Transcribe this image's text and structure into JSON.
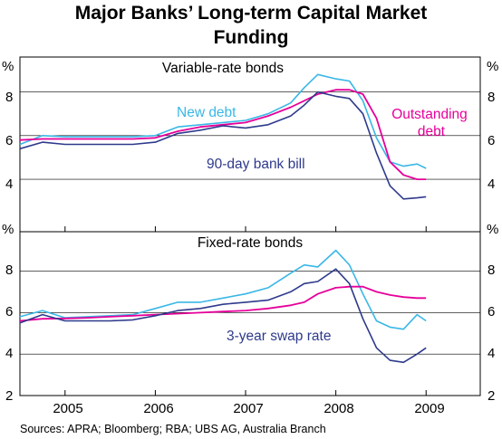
{
  "chart_title": [
    "Major Banks’ Long-term Capital Market",
    "Funding"
  ],
  "source": "Sources: APRA; Bloomberg; RBA; UBS AG, Australia Branch",
  "colors": {
    "new_debt": "#3ab7e6",
    "outstanding_debt": "#e6009a",
    "bank_bill": "#2e3a8c",
    "axes": "#000000",
    "grid": "#000000"
  },
  "chart_data": [
    {
      "type": "line",
      "title": "Variable-rate bonds",
      "ylabel": "%",
      "ylim": [
        2,
        10
      ],
      "yticks": [
        "4",
        "6",
        "8"
      ],
      "x_labels": [
        "2005",
        "2006",
        "2007",
        "2008",
        "2009"
      ],
      "x": [
        2004.5,
        2004.75,
        2005.0,
        2005.25,
        2005.5,
        2005.75,
        2006.0,
        2006.25,
        2006.5,
        2006.75,
        2007.0,
        2007.25,
        2007.5,
        2007.65,
        2007.8,
        2008.0,
        2008.15,
        2008.3,
        2008.45,
        2008.6,
        2008.75,
        2008.9,
        2009.0
      ],
      "series": [
        {
          "name": "New debt",
          "values": [
            5.6,
            6.0,
            5.95,
            5.95,
            5.95,
            5.95,
            6.0,
            6.4,
            6.5,
            6.6,
            6.7,
            7.0,
            7.5,
            8.2,
            8.8,
            8.6,
            8.5,
            7.6,
            5.9,
            4.8,
            4.6,
            4.7,
            4.5
          ]
        },
        {
          "name": "Outstanding debt",
          "values": [
            5.8,
            5.85,
            5.85,
            5.85,
            5.85,
            5.85,
            5.9,
            6.2,
            6.4,
            6.5,
            6.6,
            6.9,
            7.3,
            7.6,
            7.9,
            8.1,
            8.1,
            7.9,
            6.8,
            4.8,
            4.2,
            4.0,
            4.0
          ]
        },
        {
          "name": "90-day bank bill",
          "values": [
            5.4,
            5.7,
            5.6,
            5.6,
            5.6,
            5.6,
            5.7,
            6.1,
            6.25,
            6.45,
            6.35,
            6.5,
            6.9,
            7.4,
            8.0,
            7.8,
            7.7,
            7.0,
            5.2,
            3.7,
            3.1,
            3.15,
            3.2
          ]
        }
      ]
    },
    {
      "type": "line",
      "title": "Fixed-rate bonds",
      "ylabel": "%",
      "ylim": [
        2,
        10
      ],
      "yticks": [
        "2",
        "4",
        "6",
        "8"
      ],
      "x_labels": [
        "2005",
        "2006",
        "2007",
        "2008",
        "2009"
      ],
      "x": [
        2004.5,
        2004.75,
        2005.0,
        2005.25,
        2005.5,
        2005.75,
        2006.0,
        2006.25,
        2006.5,
        2006.75,
        2007.0,
        2007.25,
        2007.5,
        2007.65,
        2007.8,
        2008.0,
        2008.15,
        2008.3,
        2008.45,
        2008.6,
        2008.75,
        2008.9,
        2009.0
      ],
      "series": [
        {
          "name": "New debt",
          "values": [
            5.8,
            6.1,
            5.75,
            5.8,
            5.85,
            5.9,
            6.2,
            6.5,
            6.5,
            6.7,
            6.9,
            7.2,
            7.9,
            8.3,
            8.2,
            9.0,
            8.3,
            6.9,
            5.6,
            5.3,
            5.2,
            5.9,
            5.6
          ]
        },
        {
          "name": "Outstanding debt",
          "values": [
            5.6,
            5.7,
            5.72,
            5.75,
            5.8,
            5.85,
            5.9,
            5.95,
            6.0,
            6.05,
            6.1,
            6.2,
            6.35,
            6.5,
            6.9,
            7.2,
            7.25,
            7.25,
            7.0,
            6.85,
            6.75,
            6.7,
            6.7
          ]
        },
        {
          "name": "3-year swap rate",
          "values": [
            5.5,
            5.9,
            5.6,
            5.6,
            5.6,
            5.65,
            5.85,
            6.1,
            6.2,
            6.4,
            6.5,
            6.6,
            7.0,
            7.4,
            7.5,
            8.1,
            7.4,
            5.7,
            4.3,
            3.7,
            3.6,
            4.0,
            4.3
          ]
        }
      ]
    }
  ],
  "annotations": {
    "new_debt": "New debt",
    "outstanding": [
      "Outstanding",
      "debt"
    ],
    "bank_bill": "90-day bank bill",
    "swap": "3-year swap rate"
  }
}
